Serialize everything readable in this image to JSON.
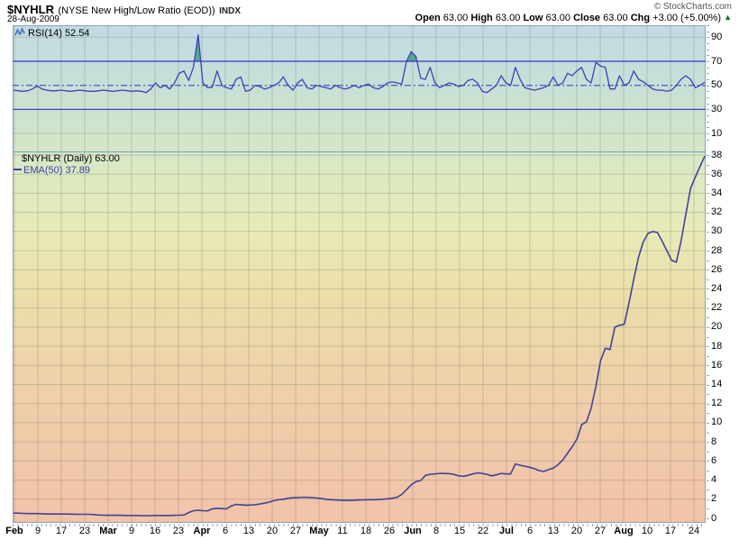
{
  "header": {
    "symbol": "$NYHLR",
    "name": "(NYSE New High/Low Ratio (EOD))",
    "exchange": "INDX",
    "date": "28-Aug-2009",
    "copyright": "© StockCharts.com",
    "quote": {
      "open_label": "Open",
      "open": "63.00",
      "high_label": "High",
      "high": "63.00",
      "low_label": "Low",
      "low": "63.00",
      "close_label": "Close",
      "close": "63.00",
      "chg_label": "Chg",
      "chg": "+3.00 (+5.00%)",
      "up_icon": "▲"
    }
  },
  "rsi_panel": {
    "legend": "RSI(14) 52.54"
  },
  "main_panel": {
    "legend": "$NYHLR (Daily) 63.00",
    "ema_legend": "EMA(50) 37.89"
  },
  "colors": {
    "price_line": "#42429a",
    "rsi_line": "#4040b8",
    "level_line": "#3333cc",
    "overbought_fill": "#55a795",
    "grid": "rgba(105,115,105,0.30)",
    "change_up": "#007a00"
  },
  "chart_data": [
    {
      "type": "line",
      "title": "RSI(14)",
      "last_value": 52.54,
      "ylim": [
        0,
        100
      ],
      "y_ticks": [
        90,
        70,
        50,
        30,
        10
      ],
      "levels": {
        "overbought": 70,
        "midline": 50,
        "oversold": 30
      },
      "legend_position": "top-left",
      "grid": "on",
      "values": [
        46,
        45.5,
        45,
        45.5,
        47,
        49.5,
        47,
        46,
        45.5,
        45.5,
        46,
        45.5,
        45,
        45.5,
        46,
        45.5,
        45,
        45,
        45.5,
        46,
        45.5,
        45,
        45.5,
        46,
        45.5,
        45,
        45.5,
        45,
        44,
        47,
        52,
        48,
        50,
        47,
        52,
        60,
        62,
        54,
        65,
        92,
        52,
        48,
        48.5,
        62,
        50,
        48,
        47,
        55,
        57,
        45,
        46,
        50,
        49,
        47,
        48,
        50,
        52,
        57,
        50,
        46,
        52,
        55,
        48,
        47,
        50,
        49,
        48,
        47,
        50,
        48,
        47,
        48,
        50,
        48,
        50,
        51,
        48,
        47,
        49,
        52,
        53,
        52,
        51,
        70,
        78,
        74,
        56,
        55,
        65,
        52,
        48,
        50,
        52,
        51,
        49,
        50,
        54,
        55,
        52,
        45,
        44,
        47,
        50,
        58,
        52,
        50,
        65,
        55,
        48,
        47,
        46,
        47,
        48,
        50,
        57,
        50,
        52,
        60,
        58,
        62,
        65,
        55,
        52,
        69,
        66,
        65,
        47,
        47,
        58,
        50,
        52,
        62,
        55,
        53,
        50,
        47,
        46,
        46,
        45,
        46,
        50,
        55,
        58,
        55,
        48,
        50,
        52.54
      ]
    },
    {
      "type": "line",
      "title": "$NYHLR (Daily) with EMA(50)",
      "series_name": "EMA(50)",
      "last_value": 37.89,
      "ylim": [
        0,
        38.8
      ],
      "y_ticks": [
        38,
        36,
        34,
        32,
        30,
        28,
        26,
        24,
        22,
        20,
        18,
        16,
        14,
        12,
        10,
        8,
        6,
        4,
        2,
        0
      ],
      "grid": "on",
      "x_axis_labels": [
        {
          "t": "Feb",
          "m": true
        },
        {
          "t": "9"
        },
        {
          "t": "17"
        },
        {
          "t": "23"
        },
        {
          "t": "Mar",
          "m": true
        },
        {
          "t": "9"
        },
        {
          "t": "16"
        },
        {
          "t": "23"
        },
        {
          "t": "Apr",
          "m": true
        },
        {
          "t": "6"
        },
        {
          "t": "13"
        },
        {
          "t": "20"
        },
        {
          "t": "27"
        },
        {
          "t": "May",
          "m": true
        },
        {
          "t": "11"
        },
        {
          "t": "18"
        },
        {
          "t": "26"
        },
        {
          "t": "Jun",
          "m": true
        },
        {
          "t": "8"
        },
        {
          "t": "15"
        },
        {
          "t": "22"
        },
        {
          "t": "Jul",
          "m": true
        },
        {
          "t": "6"
        },
        {
          "t": "13"
        },
        {
          "t": "20"
        },
        {
          "t": "27"
        },
        {
          "t": "Aug",
          "m": true
        },
        {
          "t": "10"
        },
        {
          "t": "17"
        },
        {
          "t": "24"
        }
      ],
      "values": [
        0.55,
        0.55,
        0.52,
        0.5,
        0.5,
        0.5,
        0.48,
        0.45,
        0.45,
        0.45,
        0.45,
        0.45,
        0.44,
        0.43,
        0.42,
        0.42,
        0.42,
        0.4,
        0.35,
        0.33,
        0.32,
        0.32,
        0.32,
        0.31,
        0.3,
        0.3,
        0.3,
        0.28,
        0.27,
        0.28,
        0.3,
        0.3,
        0.3,
        0.3,
        0.32,
        0.33,
        0.35,
        0.6,
        0.8,
        0.85,
        0.8,
        0.78,
        1.0,
        1.05,
        1.02,
        1.0,
        1.3,
        1.45,
        1.42,
        1.38,
        1.4,
        1.42,
        1.5,
        1.58,
        1.7,
        1.85,
        1.95,
        2.0,
        2.1,
        2.15,
        2.18,
        2.2,
        2.2,
        2.18,
        2.12,
        2.08,
        2.0,
        1.95,
        1.92,
        1.9,
        1.88,
        1.9,
        1.9,
        1.92,
        1.93,
        1.95,
        1.95,
        1.97,
        2.0,
        2.05,
        2.1,
        2.2,
        2.5,
        3.0,
        3.5,
        3.85,
        3.95,
        4.5,
        4.6,
        4.65,
        4.7,
        4.7,
        4.68,
        4.6,
        4.45,
        4.4,
        4.5,
        4.65,
        4.75,
        4.7,
        4.6,
        4.45,
        4.55,
        4.7,
        4.65,
        4.65,
        5.7,
        5.55,
        5.45,
        5.35,
        5.2,
        5.0,
        4.9,
        5.1,
        5.25,
        5.6,
        6.1,
        6.8,
        7.5,
        8.3,
        9.8,
        10.1,
        11.5,
        13.8,
        16.5,
        17.8,
        17.65,
        20.0,
        20.2,
        20.3,
        22.5,
        25.0,
        27.3,
        28.9,
        29.8,
        30.0,
        29.9,
        29.0,
        28.0,
        27.0,
        26.8,
        29.0,
        31.8,
        34.5,
        35.7,
        36.8,
        37.89
      ]
    }
  ]
}
